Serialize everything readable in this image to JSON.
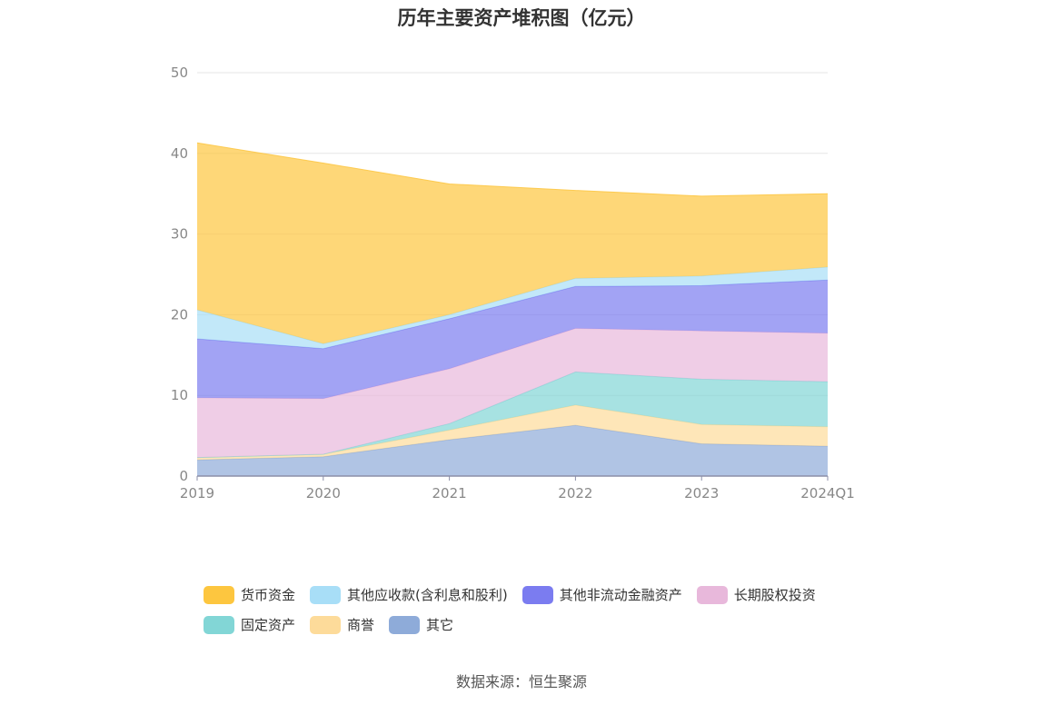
{
  "chart_data": {
    "type": "area",
    "stacked": true,
    "title": "历年主要资产堆积图（亿元）",
    "categories": [
      "2019",
      "2020",
      "2021",
      "2022",
      "2023",
      "2024Q1"
    ],
    "ylim": [
      0,
      50
    ],
    "yticks": [
      0,
      10,
      20,
      30,
      40,
      50
    ],
    "grid": true,
    "legend_position": "bottom",
    "series": [
      {
        "name": "其它",
        "color": "#8eabd9",
        "values": [
          2.0,
          2.4,
          4.5,
          6.3,
          4.0,
          3.7
        ]
      },
      {
        "name": "商誉",
        "color": "#fddb9a",
        "values": [
          0.3,
          0.3,
          1.2,
          2.5,
          2.4,
          2.4
        ]
      },
      {
        "name": "固定资产",
        "color": "#82d6d6",
        "values": [
          0.0,
          0.0,
          0.8,
          4.1,
          5.6,
          5.6
        ]
      },
      {
        "name": "长期股权投资",
        "color": "#e8b8db",
        "values": [
          7.4,
          6.9,
          6.8,
          5.4,
          6.0,
          6.0
        ]
      },
      {
        "name": "其他非流动金融资产",
        "color": "#7b7cf0",
        "values": [
          7.3,
          6.2,
          6.2,
          5.2,
          5.6,
          6.6
        ]
      },
      {
        "name": "其他应收款(含利息和股利)",
        "color": "#a8def7",
        "values": [
          3.6,
          0.6,
          0.5,
          1.0,
          1.2,
          1.6
        ]
      },
      {
        "name": "货币资金",
        "color": "#fdc63f",
        "values": [
          20.7,
          22.4,
          16.2,
          10.9,
          9.9,
          9.1
        ]
      }
    ],
    "legend_order": [
      "货币资金",
      "其他应收款(含利息和股利)",
      "其他非流动金融资产",
      "长期股权投资",
      "固定资产",
      "商誉",
      "其它"
    ]
  },
  "source_text": "数据来源：恒生聚源"
}
